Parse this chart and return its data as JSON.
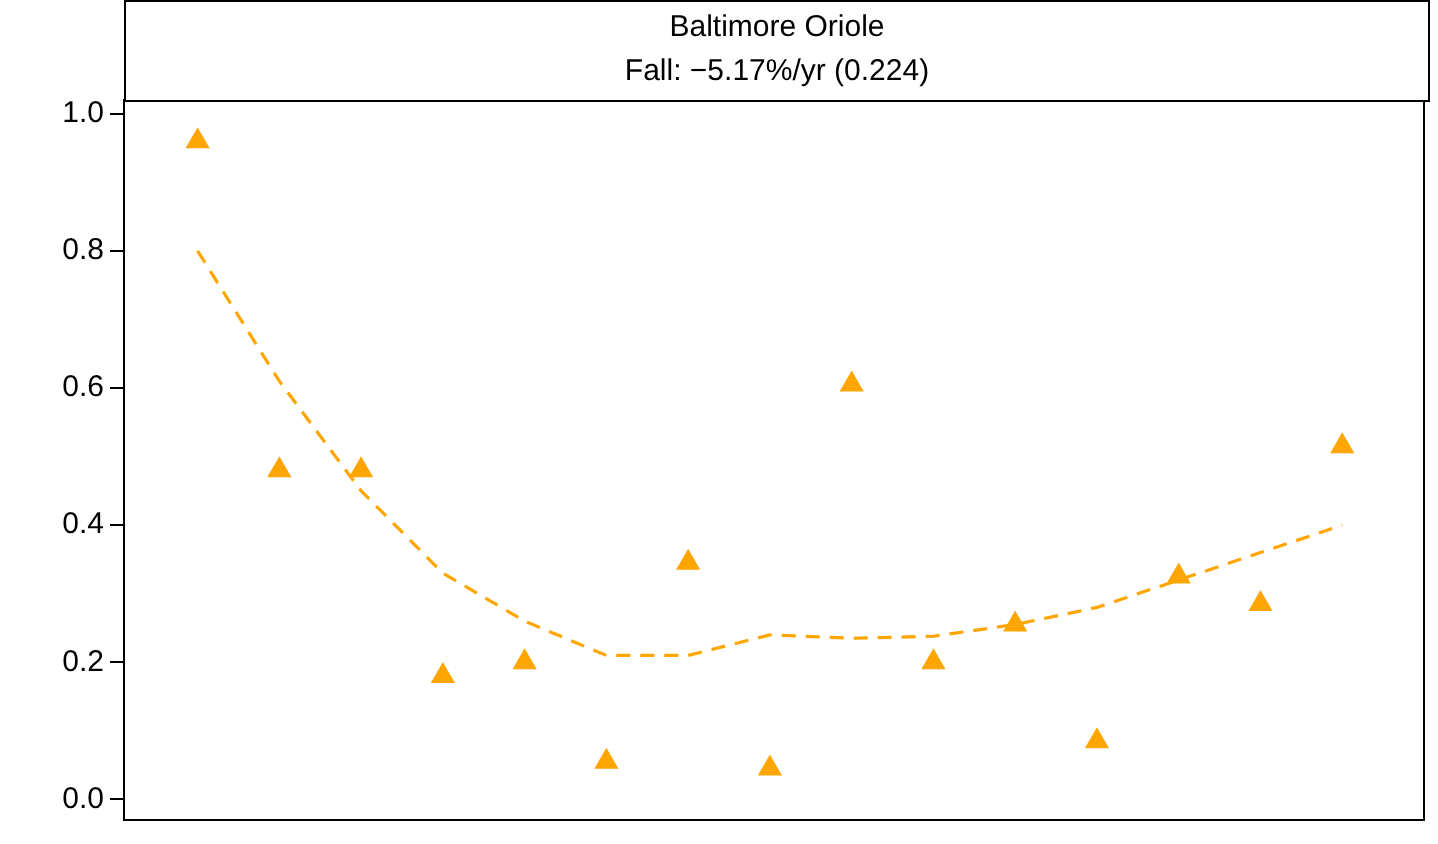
{
  "chart_data": {
    "type": "scatter",
    "title": "Baltimore Oriole",
    "subtitle": "Fall: −5.17%/yr (0.224)",
    "categories": [
      null,
      null,
      null,
      null,
      null,
      null,
      null,
      null,
      null,
      null,
      null,
      null,
      null,
      null,
      null
    ],
    "series": [
      {
        "type": "scatter",
        "color": "#ffa500",
        "marker": "triangle",
        "values": [
          0.96,
          0.48,
          0.48,
          0.18,
          0.2,
          0.055,
          0.345,
          0.045,
          0.605,
          0.2,
          0.255,
          0.085,
          0.325,
          0.285,
          0.515
        ]
      },
      {
        "type": "line",
        "color": "#ffa500",
        "marker": "none",
        "line_style": "dashed",
        "values": [
          0.8,
          0.61,
          0.45,
          0.33,
          0.26,
          0.21,
          0.21,
          0.24,
          0.235,
          0.238,
          0.255,
          0.28,
          0.32,
          0.36,
          0.4
        ]
      }
    ],
    "ylim": [
      -0.03,
      1.02
    ],
    "yticks": [
      {
        "value": 0,
        "label": "0.0"
      },
      0.2,
      0.4,
      0.6,
      0.8,
      {
        "value": 1,
        "label": "1.0"
      }
    ]
  }
}
